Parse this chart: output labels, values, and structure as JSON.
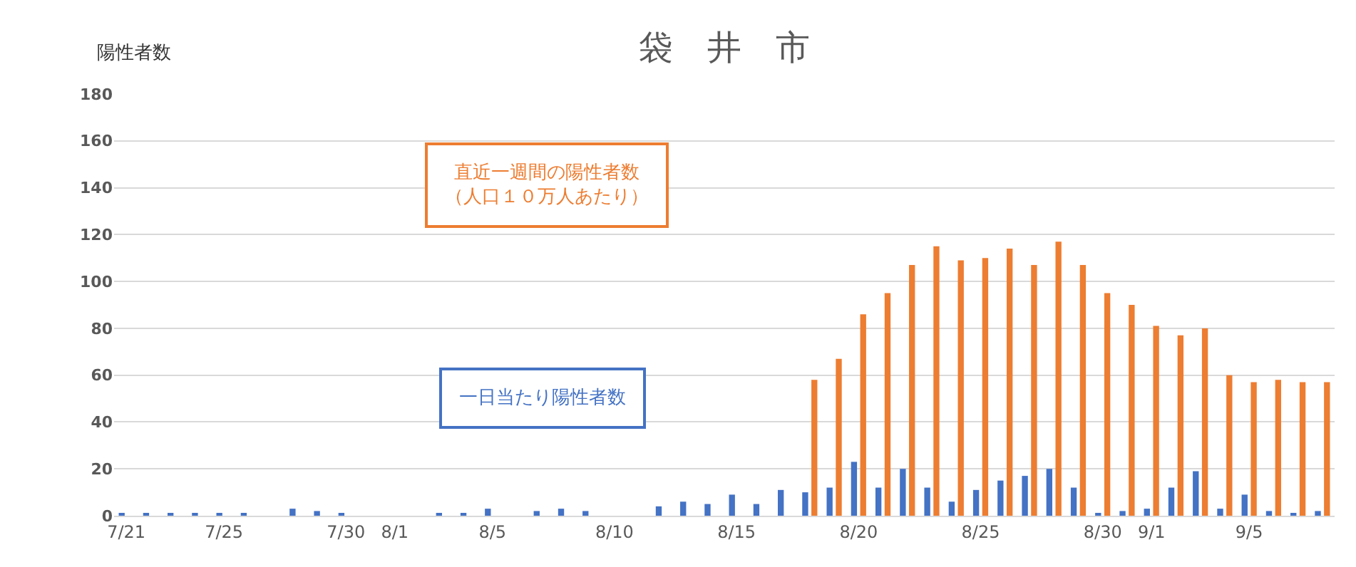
{
  "chart_data": {
    "type": "bar",
    "title": "袋　井　市",
    "ylabel": "陽性者数",
    "categories": [
      "7/21",
      null,
      null,
      null,
      "7/25",
      null,
      null,
      null,
      null,
      "7/30",
      null,
      "8/1",
      null,
      null,
      null,
      "8/5",
      null,
      null,
      null,
      null,
      "8/10",
      null,
      null,
      null,
      null,
      "8/15",
      null,
      null,
      null,
      null,
      "8/20",
      null,
      null,
      null,
      null,
      "8/25",
      null,
      null,
      null,
      null,
      "8/30",
      null,
      "9/1",
      null,
      null,
      null,
      "9/5",
      null,
      null,
      null
    ],
    "series": [
      {
        "name": "一日当たり陽性者数",
        "color": "#4472c4",
        "values": [
          1,
          1,
          1,
          1,
          1,
          1,
          0,
          3,
          2,
          1,
          0,
          0,
          0,
          1,
          1,
          3,
          0,
          2,
          3,
          2,
          0,
          0,
          4,
          6,
          5,
          9,
          5,
          11,
          10,
          12,
          23,
          12,
          20,
          12,
          6,
          11,
          15,
          17,
          20,
          12,
          1,
          2,
          3,
          12,
          19,
          3,
          9,
          2,
          1,
          2
        ]
      },
      {
        "name": "直近一週間の陽性者数（人口１０万人あたり）",
        "color": "#ed7d31",
        "values": [
          null,
          null,
          null,
          null,
          null,
          null,
          null,
          null,
          null,
          null,
          null,
          null,
          null,
          null,
          null,
          null,
          null,
          null,
          null,
          null,
          null,
          null,
          null,
          null,
          null,
          null,
          null,
          null,
          58,
          67,
          86,
          95,
          107,
          115,
          109,
          110,
          114,
          107,
          117,
          107,
          95,
          90,
          81,
          77,
          80,
          60,
          57,
          58,
          57,
          57
        ]
      }
    ],
    "ylim": [
      0,
      180
    ],
    "yticks": [
      0,
      20,
      40,
      60,
      80,
      100,
      120,
      140,
      160,
      180
    ],
    "grid": "y",
    "legend": false
  }
}
